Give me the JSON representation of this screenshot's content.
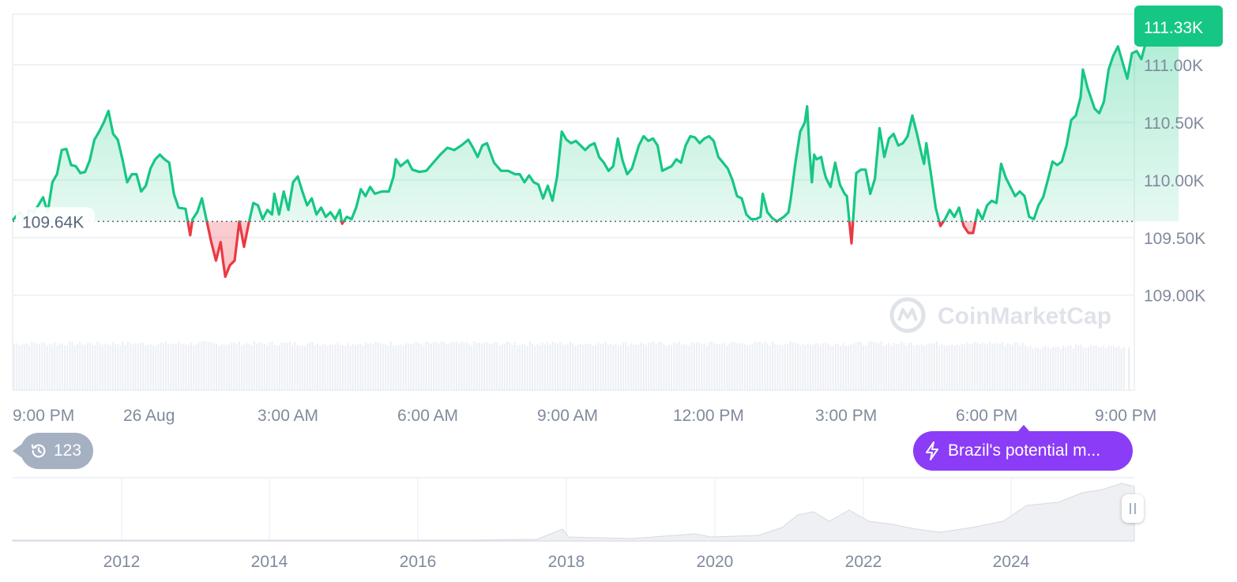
{
  "chart_data": {
    "type": "line",
    "reference_label": "109.64K",
    "reference_value": 109.64,
    "current_label": "111.33K",
    "ylim": [
      108.6,
      111.44
    ],
    "y_ticks": [
      {
        "value": 111.0,
        "label": "111.00K"
      },
      {
        "value": 110.5,
        "label": "110.50K"
      },
      {
        "value": 110.0,
        "label": "110.00K"
      },
      {
        "value": 109.5,
        "label": "109.50K"
      },
      {
        "value": 109.0,
        "label": "109.00K"
      }
    ],
    "x_ticks": [
      "9:00 PM",
      "26 Aug",
      "3:00 AM",
      "6:00 AM",
      "9:00 AM",
      "12:00 PM",
      "3:00 PM",
      "6:00 PM",
      "9:00 PM"
    ],
    "x_range_hours": [
      0,
      24
    ],
    "series": [
      {
        "points": [
          [
            0.0,
            109.65
          ],
          [
            0.15,
            109.72
          ],
          [
            0.3,
            109.64
          ],
          [
            0.35,
            109.74
          ],
          [
            0.45,
            109.72
          ],
          [
            0.55,
            109.78
          ],
          [
            0.65,
            109.85
          ],
          [
            0.75,
            109.72
          ],
          [
            0.85,
            109.98
          ],
          [
            0.95,
            110.05
          ],
          [
            1.05,
            110.26
          ],
          [
            1.15,
            110.27
          ],
          [
            1.25,
            110.13
          ],
          [
            1.35,
            110.12
          ],
          [
            1.45,
            110.06
          ],
          [
            1.55,
            110.07
          ],
          [
            1.65,
            110.17
          ],
          [
            1.75,
            110.35
          ],
          [
            1.85,
            110.42
          ],
          [
            1.95,
            110.5
          ],
          [
            2.05,
            110.6
          ],
          [
            2.15,
            110.4
          ],
          [
            2.25,
            110.35
          ],
          [
            2.35,
            110.18
          ],
          [
            2.45,
            109.98
          ],
          [
            2.55,
            110.05
          ],
          [
            2.65,
            110.05
          ],
          [
            2.75,
            109.9
          ],
          [
            2.85,
            109.95
          ],
          [
            2.95,
            110.1
          ],
          [
            3.05,
            110.18
          ],
          [
            3.15,
            110.22
          ],
          [
            3.25,
            110.18
          ],
          [
            3.35,
            110.15
          ],
          [
            3.45,
            109.88
          ],
          [
            3.55,
            109.76
          ],
          [
            3.7,
            109.75
          ],
          [
            3.8,
            109.52
          ],
          [
            3.85,
            109.66
          ],
          [
            3.95,
            109.72
          ],
          [
            4.05,
            109.84
          ],
          [
            4.15,
            109.65
          ],
          [
            4.25,
            109.46
          ],
          [
            4.35,
            109.3
          ],
          [
            4.45,
            109.46
          ],
          [
            4.5,
            109.3
          ],
          [
            4.55,
            109.16
          ],
          [
            4.65,
            109.26
          ],
          [
            4.75,
            109.3
          ],
          [
            4.85,
            109.64
          ],
          [
            4.95,
            109.42
          ],
          [
            5.05,
            109.62
          ],
          [
            5.15,
            109.8
          ],
          [
            5.25,
            109.78
          ],
          [
            5.35,
            109.66
          ],
          [
            5.45,
            109.74
          ],
          [
            5.55,
            109.7
          ],
          [
            5.6,
            109.88
          ],
          [
            5.7,
            109.7
          ],
          [
            5.8,
            109.9
          ],
          [
            5.9,
            109.74
          ],
          [
            6.0,
            109.98
          ],
          [
            6.1,
            110.03
          ],
          [
            6.2,
            109.9
          ],
          [
            6.3,
            109.78
          ],
          [
            6.4,
            109.84
          ],
          [
            6.5,
            109.7
          ],
          [
            6.6,
            109.76
          ],
          [
            6.7,
            109.68
          ],
          [
            6.8,
            109.72
          ],
          [
            6.9,
            109.66
          ],
          [
            7.0,
            109.74
          ],
          [
            7.05,
            109.62
          ],
          [
            7.15,
            109.68
          ],
          [
            7.25,
            109.66
          ],
          [
            7.35,
            109.76
          ],
          [
            7.45,
            109.92
          ],
          [
            7.55,
            109.86
          ],
          [
            7.65,
            109.94
          ],
          [
            7.75,
            109.88
          ],
          [
            7.9,
            109.9
          ],
          [
            8.05,
            109.9
          ],
          [
            8.15,
            110.03
          ],
          [
            8.2,
            110.18
          ],
          [
            8.3,
            110.12
          ],
          [
            8.45,
            110.17
          ],
          [
            8.55,
            110.09
          ],
          [
            8.7,
            110.07
          ],
          [
            8.85,
            110.08
          ],
          [
            9.0,
            110.15
          ],
          [
            9.15,
            110.22
          ],
          [
            9.3,
            110.28
          ],
          [
            9.45,
            110.26
          ],
          [
            9.6,
            110.3
          ],
          [
            9.75,
            110.35
          ],
          [
            9.85,
            110.28
          ],
          [
            9.95,
            110.2
          ],
          [
            10.05,
            110.3
          ],
          [
            10.15,
            110.32
          ],
          [
            10.3,
            110.15
          ],
          [
            10.45,
            110.08
          ],
          [
            10.6,
            110.08
          ],
          [
            10.75,
            110.05
          ],
          [
            10.85,
            110.05
          ],
          [
            10.95,
            109.98
          ],
          [
            11.05,
            110.04
          ],
          [
            11.15,
            109.98
          ],
          [
            11.25,
            109.96
          ],
          [
            11.35,
            109.84
          ],
          [
            11.45,
            109.95
          ],
          [
            11.55,
            109.82
          ],
          [
            11.65,
            110.03
          ],
          [
            11.75,
            110.42
          ],
          [
            11.85,
            110.35
          ],
          [
            11.95,
            110.32
          ],
          [
            12.05,
            110.34
          ],
          [
            12.15,
            110.3
          ],
          [
            12.25,
            110.26
          ],
          [
            12.35,
            110.3
          ],
          [
            12.45,
            110.32
          ],
          [
            12.55,
            110.2
          ],
          [
            12.65,
            110.15
          ],
          [
            12.75,
            110.08
          ],
          [
            12.85,
            110.12
          ],
          [
            12.95,
            110.36
          ],
          [
            13.05,
            110.17
          ],
          [
            13.15,
            110.05
          ],
          [
            13.25,
            110.1
          ],
          [
            13.4,
            110.3
          ],
          [
            13.5,
            110.38
          ],
          [
            13.6,
            110.34
          ],
          [
            13.7,
            110.36
          ],
          [
            13.8,
            110.3
          ],
          [
            13.9,
            110.08
          ],
          [
            14.0,
            110.1
          ],
          [
            14.1,
            110.12
          ],
          [
            14.2,
            110.18
          ],
          [
            14.3,
            110.15
          ],
          [
            14.4,
            110.3
          ],
          [
            14.5,
            110.38
          ],
          [
            14.6,
            110.37
          ],
          [
            14.7,
            110.32
          ],
          [
            14.8,
            110.36
          ],
          [
            14.9,
            110.38
          ],
          [
            15.0,
            110.34
          ],
          [
            15.1,
            110.2
          ],
          [
            15.2,
            110.15
          ],
          [
            15.3,
            110.1
          ],
          [
            15.4,
            110.0
          ],
          [
            15.5,
            109.86
          ],
          [
            15.6,
            109.84
          ],
          [
            15.7,
            109.7
          ],
          [
            15.8,
            109.66
          ],
          [
            15.9,
            109.66
          ],
          [
            16.0,
            109.68
          ],
          [
            16.05,
            109.88
          ],
          [
            16.15,
            109.72
          ],
          [
            16.25,
            109.67
          ],
          [
            16.35,
            109.64
          ],
          [
            16.5,
            109.68
          ],
          [
            16.6,
            109.72
          ],
          [
            16.65,
            109.84
          ],
          [
            16.75,
            110.15
          ],
          [
            16.85,
            110.42
          ],
          [
            16.95,
            110.5
          ],
          [
            17.0,
            110.64
          ],
          [
            17.05,
            110.26
          ],
          [
            17.1,
            109.98
          ],
          [
            17.15,
            110.22
          ],
          [
            17.2,
            110.18
          ],
          [
            17.3,
            110.2
          ],
          [
            17.35,
            110.1
          ],
          [
            17.4,
            110.02
          ],
          [
            17.5,
            109.94
          ],
          [
            17.6,
            110.15
          ],
          [
            17.7,
            109.96
          ],
          [
            17.8,
            109.88
          ],
          [
            17.85,
            109.86
          ],
          [
            17.9,
            109.65
          ],
          [
            17.95,
            109.45
          ],
          [
            18.05,
            110.06
          ],
          [
            18.15,
            110.09
          ],
          [
            18.25,
            110.09
          ],
          [
            18.35,
            109.88
          ],
          [
            18.45,
            110.01
          ],
          [
            18.55,
            110.45
          ],
          [
            18.65,
            110.2
          ],
          [
            18.75,
            110.36
          ],
          [
            18.85,
            110.4
          ],
          [
            18.95,
            110.3
          ],
          [
            19.05,
            110.32
          ],
          [
            19.15,
            110.38
          ],
          [
            19.25,
            110.56
          ],
          [
            19.35,
            110.4
          ],
          [
            19.45,
            110.22
          ],
          [
            19.5,
            110.14
          ],
          [
            19.55,
            110.32
          ],
          [
            19.65,
            110.05
          ],
          [
            19.75,
            109.76
          ],
          [
            19.85,
            109.6
          ],
          [
            19.95,
            109.66
          ],
          [
            20.05,
            109.74
          ],
          [
            20.15,
            109.68
          ],
          [
            20.25,
            109.76
          ],
          [
            20.35,
            109.6
          ],
          [
            20.45,
            109.54
          ],
          [
            20.55,
            109.54
          ],
          [
            20.65,
            109.74
          ],
          [
            20.75,
            109.66
          ],
          [
            20.85,
            109.78
          ],
          [
            20.95,
            109.82
          ],
          [
            21.05,
            109.8
          ],
          [
            21.15,
            110.14
          ],
          [
            21.25,
            110.02
          ],
          [
            21.35,
            109.94
          ],
          [
            21.45,
            109.86
          ],
          [
            21.55,
            109.9
          ],
          [
            21.65,
            109.86
          ],
          [
            21.75,
            109.68
          ],
          [
            21.85,
            109.66
          ],
          [
            21.95,
            109.78
          ],
          [
            22.05,
            109.85
          ],
          [
            22.15,
            110.0
          ],
          [
            22.25,
            110.16
          ],
          [
            22.35,
            110.13
          ],
          [
            22.45,
            110.16
          ],
          [
            22.55,
            110.3
          ],
          [
            22.65,
            110.52
          ],
          [
            22.75,
            110.56
          ],
          [
            22.85,
            110.72
          ],
          [
            22.9,
            110.96
          ],
          [
            23.0,
            110.8
          ],
          [
            23.05,
            110.74
          ],
          [
            23.15,
            110.62
          ],
          [
            23.25,
            110.58
          ],
          [
            23.35,
            110.68
          ],
          [
            23.45,
            110.96
          ],
          [
            23.55,
            111.08
          ],
          [
            23.65,
            111.16
          ],
          [
            23.75,
            111.02
          ],
          [
            23.85,
            110.88
          ],
          [
            23.95,
            111.1
          ],
          [
            24.05,
            111.12
          ],
          [
            24.15,
            111.05
          ],
          [
            24.25,
            111.2
          ],
          [
            24.35,
            111.3
          ],
          [
            24.45,
            111.32
          ],
          [
            24.55,
            111.36
          ],
          [
            24.65,
            111.3
          ],
          [
            24.75,
            111.28
          ],
          [
            24.85,
            111.3
          ],
          [
            24.95,
            111.33
          ]
        ]
      }
    ],
    "navigator": {
      "x_ticks": [
        "2012",
        "2014",
        "2016",
        "2018",
        "2020",
        "2022",
        "2024"
      ]
    },
    "grid": true
  },
  "labels": {
    "history_count": "123",
    "news_headline": "Brazil's potential m...",
    "watermark": "CoinMarketCap"
  },
  "colors": {
    "up": "#16c784",
    "down": "#ea3943",
    "grid": "#eff2f5",
    "axis_text": "#808a9d",
    "news": "#8b3cf7",
    "history": "#a6b0c3"
  }
}
